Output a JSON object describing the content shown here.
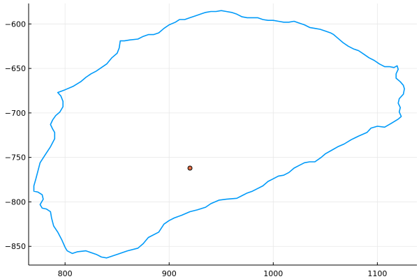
{
  "chart_data": {
    "type": "scatter",
    "title": "",
    "xlabel": "",
    "ylabel": "",
    "xlim": [
      765,
      1138
    ],
    "ylim": [
      -871,
      -577
    ],
    "grid": true,
    "legend": "none",
    "x_ticks": [
      {
        "value": 800,
        "label": "800"
      },
      {
        "value": 900,
        "label": "900"
      },
      {
        "value": 1000,
        "label": "1000"
      },
      {
        "value": 1100,
        "label": "1100"
      }
    ],
    "y_ticks": [
      {
        "value": -600,
        "label": "−600"
      },
      {
        "value": -650,
        "label": "−650"
      },
      {
        "value": -700,
        "label": "−700"
      },
      {
        "value": -750,
        "label": "−750"
      },
      {
        "value": -800,
        "label": "−800"
      },
      {
        "value": -850,
        "label": "−850"
      }
    ],
    "series": [
      {
        "kind": "line",
        "color": "#009af9",
        "points": [
          [
            950,
            -585
          ],
          [
            955,
            -586
          ],
          [
            960,
            -587
          ],
          [
            965,
            -589
          ],
          [
            970,
            -592
          ],
          [
            975,
            -593
          ],
          [
            980,
            -593
          ],
          [
            985,
            -593
          ],
          [
            990,
            -595
          ],
          [
            995,
            -596
          ],
          [
            1000,
            -596
          ],
          [
            1005,
            -597
          ],
          [
            1010,
            -598
          ],
          [
            1015,
            -598
          ],
          [
            1020,
            -597
          ],
          [
            1025,
            -599
          ],
          [
            1030,
            -601
          ],
          [
            1035,
            -604
          ],
          [
            1040,
            -605
          ],
          [
            1045,
            -606
          ],
          [
            1050,
            -608
          ],
          [
            1055,
            -610
          ],
          [
            1058,
            -612
          ],
          [
            1062,
            -616
          ],
          [
            1067,
            -621
          ],
          [
            1072,
            -625
          ],
          [
            1077,
            -628
          ],
          [
            1082,
            -630
          ],
          [
            1087,
            -634
          ],
          [
            1092,
            -638
          ],
          [
            1097,
            -641
          ],
          [
            1102,
            -645
          ],
          [
            1107,
            -648
          ],
          [
            1112,
            -648
          ],
          [
            1116,
            -649
          ],
          [
            1119,
            -647
          ],
          [
            1120,
            -651
          ],
          [
            1118,
            -656
          ],
          [
            1118,
            -661
          ],
          [
            1122,
            -665
          ],
          [
            1125,
            -669
          ],
          [
            1126,
            -673
          ],
          [
            1125,
            -679
          ],
          [
            1121,
            -684
          ],
          [
            1120,
            -689
          ],
          [
            1122,
            -694
          ],
          [
            1121,
            -699
          ],
          [
            1123,
            -704
          ],
          [
            1120,
            -707
          ],
          [
            1113,
            -712
          ],
          [
            1107,
            -716
          ],
          [
            1100,
            -715
          ],
          [
            1094,
            -717
          ],
          [
            1090,
            -722
          ],
          [
            1082,
            -726
          ],
          [
            1075,
            -730
          ],
          [
            1068,
            -735
          ],
          [
            1062,
            -738
          ],
          [
            1056,
            -742
          ],
          [
            1050,
            -746
          ],
          [
            1046,
            -750
          ],
          [
            1040,
            -755
          ],
          [
            1035,
            -755
          ],
          [
            1030,
            -756
          ],
          [
            1025,
            -759
          ],
          [
            1020,
            -762
          ],
          [
            1015,
            -767
          ],
          [
            1010,
            -770
          ],
          [
            1005,
            -771
          ],
          [
            1000,
            -774
          ],
          [
            995,
            -777
          ],
          [
            990,
            -782
          ],
          [
            985,
            -785
          ],
          [
            980,
            -788
          ],
          [
            975,
            -790
          ],
          [
            970,
            -793
          ],
          [
            965,
            -796
          ],
          [
            955,
            -797
          ],
          [
            948,
            -798
          ],
          [
            940,
            -802
          ],
          [
            935,
            -806
          ],
          [
            927,
            -809
          ],
          [
            920,
            -811
          ],
          [
            912,
            -815
          ],
          [
            905,
            -818
          ],
          [
            900,
            -821
          ],
          [
            895,
            -825
          ],
          [
            890,
            -834
          ],
          [
            880,
            -840
          ],
          [
            875,
            -847
          ],
          [
            870,
            -852
          ],
          [
            860,
            -855
          ],
          [
            850,
            -859
          ],
          [
            840,
            -863
          ],
          [
            835,
            -862
          ],
          [
            830,
            -859
          ],
          [
            820,
            -855
          ],
          [
            812,
            -856
          ],
          [
            807,
            -858
          ],
          [
            802,
            -855
          ],
          [
            800,
            -851
          ],
          [
            797,
            -843
          ],
          [
            793,
            -834
          ],
          [
            789,
            -827
          ],
          [
            787,
            -818
          ],
          [
            786,
            -811
          ],
          [
            782,
            -808
          ],
          [
            778,
            -807
          ],
          [
            776,
            -803
          ],
          [
            779,
            -797
          ],
          [
            778,
            -792
          ],
          [
            774,
            -789
          ],
          [
            770,
            -788
          ],
          [
            770,
            -782
          ],
          [
            772,
            -774
          ],
          [
            774,
            -765
          ],
          [
            776,
            -756
          ],
          [
            781,
            -747
          ],
          [
            786,
            -738
          ],
          [
            790,
            -729
          ],
          [
            790,
            -722
          ],
          [
            788,
            -718
          ],
          [
            786,
            -713
          ],
          [
            788,
            -708
          ],
          [
            791,
            -703
          ],
          [
            795,
            -699
          ],
          [
            798,
            -693
          ],
          [
            798,
            -687
          ],
          [
            796,
            -681
          ],
          [
            793,
            -677
          ],
          [
            800,
            -674
          ],
          [
            808,
            -670
          ],
          [
            815,
            -665
          ],
          [
            820,
            -660
          ],
          [
            825,
            -656
          ],
          [
            830,
            -653
          ],
          [
            835,
            -649
          ],
          [
            840,
            -645
          ],
          [
            845,
            -638
          ],
          [
            850,
            -633
          ],
          [
            852,
            -627
          ],
          [
            853,
            -619
          ],
          [
            857,
            -619
          ],
          [
            862,
            -618
          ],
          [
            870,
            -617
          ],
          [
            875,
            -614
          ],
          [
            880,
            -612
          ],
          [
            885,
            -612
          ],
          [
            890,
            -610
          ],
          [
            895,
            -605
          ],
          [
            900,
            -601
          ],
          [
            906,
            -598
          ],
          [
            910,
            -595
          ],
          [
            915,
            -595
          ],
          [
            920,
            -593
          ],
          [
            925,
            -591
          ],
          [
            930,
            -589
          ],
          [
            935,
            -587
          ],
          [
            940,
            -586
          ],
          [
            945,
            -586
          ],
          [
            950,
            -585
          ]
        ]
      },
      {
        "kind": "point",
        "color": "#e26f46",
        "points": [
          [
            920,
            -762
          ]
        ]
      }
    ]
  }
}
